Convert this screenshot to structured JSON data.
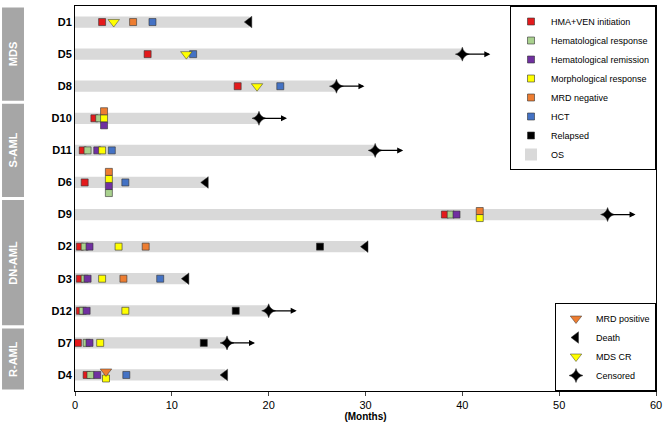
{
  "chart_data": {
    "type": "swimmer",
    "xlabel": "(Months)",
    "xlim": [
      0,
      60
    ],
    "xticks": [
      0,
      10,
      20,
      30,
      40,
      50,
      60
    ],
    "grid": false,
    "legend": "upper right",
    "categories": [
      "D1",
      "D5",
      "D8",
      "D10",
      "D11",
      "D6",
      "D9",
      "D2",
      "D3",
      "D12",
      "D7",
      "D4"
    ],
    "groups": [
      {
        "name": "MDS",
        "categories": [
          "D1",
          "D5",
          "D8"
        ]
      },
      {
        "name": "S-AML",
        "categories": [
          "D10",
          "D11",
          "D6"
        ]
      },
      {
        "name": "DN-AML",
        "categories": [
          "D9",
          "D2",
          "D3",
          "D12"
        ]
      },
      {
        "name": "R-AML",
        "categories": [
          "D7",
          "D4"
        ]
      }
    ],
    "series": [
      {
        "name": "HMA+VEN initiation",
        "type": "scatter",
        "marker": "square",
        "color": "#e31a1c",
        "values": [
          2.8,
          7.5,
          16.8,
          2.0,
          0.8,
          1.0,
          38.2,
          0.5,
          0.5,
          0.5,
          0.3,
          1.2
        ]
      },
      {
        "name": "Hematological response",
        "type": "scatter",
        "marker": "square",
        "color": "#a9d18e",
        "values": [
          null,
          null,
          null,
          2.5,
          1.3,
          3.5,
          38.8,
          1.0,
          1.0,
          0.8,
          1.2,
          1.6
        ]
      },
      {
        "name": "Hematological remission",
        "type": "scatter",
        "marker": "square",
        "color": "#7030a0",
        "values": [
          null,
          null,
          null,
          3.0,
          2.3,
          3.5,
          39.4,
          1.5,
          1.3,
          1.2,
          1.5,
          2.3
        ]
      },
      {
        "name": "Morphological response",
        "type": "scatter",
        "marker": "square",
        "color": "#ffff00",
        "values": [
          null,
          null,
          null,
          3.0,
          2.8,
          3.5,
          41.8,
          4.5,
          2.8,
          5.2,
          2.6,
          3.2
        ]
      },
      {
        "name": "MRD negative",
        "type": "scatter",
        "marker": "square",
        "color": "#ed7d31",
        "values": [
          6.0,
          null,
          null,
          3.0,
          null,
          3.5,
          41.8,
          7.3,
          5.0,
          null,
          null,
          null
        ]
      },
      {
        "name": "HCT",
        "type": "scatter",
        "marker": "square",
        "color": "#4472c4",
        "values": [
          8.0,
          12.2,
          21.2,
          null,
          3.8,
          5.2,
          null,
          null,
          8.8,
          null,
          null,
          5.3
        ]
      },
      {
        "name": "Relapsed",
        "type": "scatter",
        "marker": "square",
        "color": "#000000",
        "values": [
          null,
          null,
          null,
          null,
          null,
          null,
          null,
          25.3,
          null,
          16.6,
          13.3,
          null
        ]
      },
      {
        "name": "OS",
        "type": "bar",
        "color": "#d9d9d9",
        "values": [
          18,
          40,
          27,
          19,
          31,
          13.5,
          55,
          30,
          11.5,
          20,
          15.7,
          15.5
        ]
      },
      {
        "name": "MRD positive",
        "type": "scatter",
        "marker": "triangle-down",
        "color": "#ed7d31",
        "values": [
          null,
          null,
          null,
          null,
          null,
          null,
          null,
          null,
          null,
          null,
          null,
          3.2
        ]
      },
      {
        "name": "Death",
        "type": "scatter",
        "marker": "triangle-left",
        "color": "#000000",
        "values": [
          18,
          null,
          null,
          null,
          null,
          13.5,
          null,
          30,
          11.5,
          null,
          null,
          15.5
        ]
      },
      {
        "name": "MDS CR",
        "type": "scatter",
        "marker": "triangle-down",
        "color": "#ffff00",
        "values": [
          4.0,
          11.5,
          18.8,
          null,
          null,
          null,
          null,
          null,
          null,
          null,
          null,
          null
        ]
      },
      {
        "name": "Censored",
        "type": "scatter",
        "marker": "star-diamond",
        "line_style": "arrow",
        "color": "#000000",
        "values": [
          null,
          40,
          27,
          19,
          31,
          null,
          55,
          null,
          null,
          20,
          15.7,
          null
        ]
      }
    ]
  }
}
